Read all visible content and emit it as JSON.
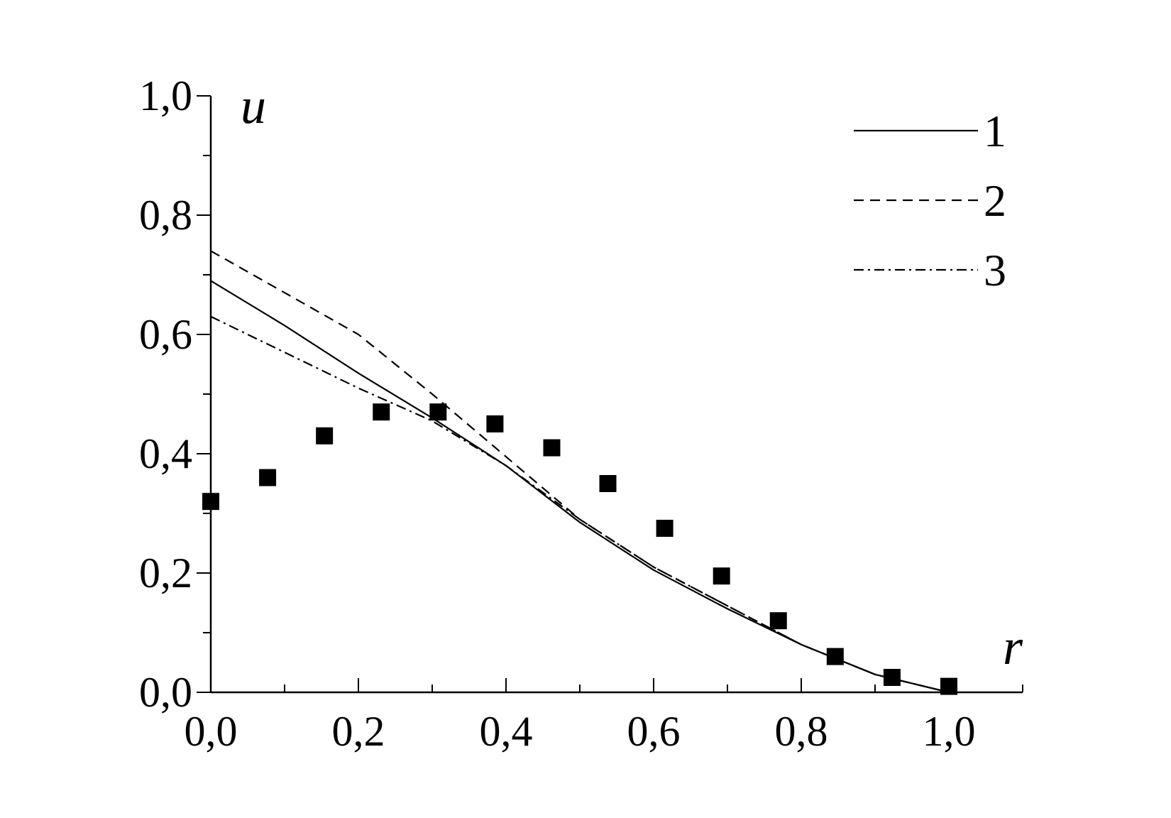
{
  "chart_data": {
    "type": "line",
    "xlabel": "r",
    "ylabel": "u",
    "xlim": [
      0.0,
      1.1
    ],
    "ylim": [
      0.0,
      1.0
    ],
    "x_ticks": [
      "0,0",
      "0,2",
      "0,4",
      "0,6",
      "0,8",
      "1,0"
    ],
    "y_ticks": [
      "0,0",
      "0,2",
      "0,4",
      "0,6",
      "0,8",
      "1,0"
    ],
    "grid": false,
    "legend_position": "top-right",
    "series": [
      {
        "name": "1",
        "style": "solid",
        "color": "#000000",
        "x": [
          0.0,
          0.1,
          0.2,
          0.3,
          0.4,
          0.5,
          0.6,
          0.7,
          0.8,
          0.9,
          1.0
        ],
        "y": [
          0.69,
          0.615,
          0.535,
          0.46,
          0.38,
          0.285,
          0.205,
          0.14,
          0.08,
          0.03,
          0.0
        ]
      },
      {
        "name": "2",
        "style": "dashed",
        "color": "#000000",
        "x": [
          0.0,
          0.1,
          0.2,
          0.3,
          0.4,
          0.5,
          0.6,
          0.7,
          0.8,
          0.9,
          1.0
        ],
        "y": [
          0.74,
          0.67,
          0.6,
          0.5,
          0.395,
          0.29,
          0.21,
          0.145,
          0.08,
          0.03,
          0.0
        ]
      },
      {
        "name": "3",
        "style": "dashdot",
        "color": "#000000",
        "x": [
          0.0,
          0.1,
          0.2,
          0.3,
          0.4,
          0.5,
          0.6,
          0.7,
          0.8,
          0.9,
          1.0
        ],
        "y": [
          0.63,
          0.57,
          0.51,
          0.455,
          0.38,
          0.29,
          0.21,
          0.145,
          0.08,
          0.03,
          0.0
        ]
      },
      {
        "style": "markers",
        "marker": "square",
        "color": "#000000",
        "x": [
          0.0,
          0.077,
          0.154,
          0.231,
          0.308,
          0.385,
          0.462,
          0.538,
          0.615,
          0.692,
          0.769,
          0.846,
          0.923,
          1.0
        ],
        "y": [
          0.32,
          0.36,
          0.43,
          0.47,
          0.47,
          0.45,
          0.41,
          0.35,
          0.275,
          0.195,
          0.12,
          0.06,
          0.025,
          0.01
        ]
      }
    ]
  }
}
